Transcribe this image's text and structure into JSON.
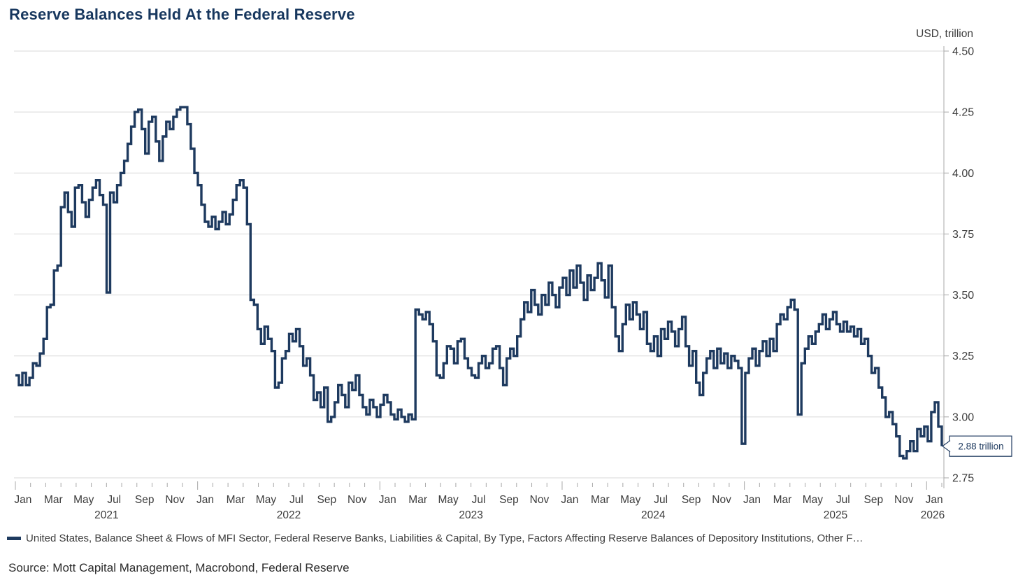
{
  "title": "Reserve Balances Held At the Federal Reserve",
  "y_axis": {
    "unit_label": "USD, trillion",
    "tick_values": [
      4.5,
      4.25,
      4.0,
      3.75,
      3.5,
      3.25,
      3.0,
      2.75
    ],
    "tick_labels": [
      "4.50",
      "4.25",
      "4.00",
      "3.75",
      "3.50",
      "3.25",
      "3.00",
      "2.75"
    ]
  },
  "x_axis": {
    "month_labels": [
      {
        "label": "Jan",
        "m": 0
      },
      {
        "label": "Mar",
        "m": 2
      },
      {
        "label": "May",
        "m": 4
      },
      {
        "label": "Jul",
        "m": 6
      },
      {
        "label": "Sep",
        "m": 8
      },
      {
        "label": "Nov",
        "m": 10
      },
      {
        "label": "Jan",
        "m": 12
      },
      {
        "label": "Mar",
        "m": 14
      },
      {
        "label": "May",
        "m": 16
      },
      {
        "label": "Jul",
        "m": 18
      },
      {
        "label": "Sep",
        "m": 20
      },
      {
        "label": "Nov",
        "m": 22
      },
      {
        "label": "Jan",
        "m": 24
      },
      {
        "label": "Mar",
        "m": 26
      },
      {
        "label": "May",
        "m": 28
      },
      {
        "label": "Jul",
        "m": 30
      },
      {
        "label": "Sep",
        "m": 32
      },
      {
        "label": "Nov",
        "m": 34
      },
      {
        "label": "Jan",
        "m": 36
      },
      {
        "label": "Mar",
        "m": 38
      },
      {
        "label": "May",
        "m": 40
      },
      {
        "label": "Jul",
        "m": 42
      },
      {
        "label": "Sep",
        "m": 44
      },
      {
        "label": "Nov",
        "m": 46
      },
      {
        "label": "Jan",
        "m": 48
      },
      {
        "label": "Mar",
        "m": 50
      },
      {
        "label": "May",
        "m": 52
      },
      {
        "label": "Jul",
        "m": 54
      },
      {
        "label": "Sep",
        "m": 56
      },
      {
        "label": "Nov",
        "m": 58
      },
      {
        "label": "Jan",
        "m": 60
      }
    ],
    "year_labels": [
      {
        "label": "2021",
        "center_m": 6
      },
      {
        "label": "2022",
        "center_m": 18
      },
      {
        "label": "2023",
        "center_m": 30
      },
      {
        "label": "2024",
        "center_m": 42
      },
      {
        "label": "2025",
        "center_m": 54
      },
      {
        "label": "2026",
        "center_m": 60.4
      }
    ],
    "total_months": 61
  },
  "callout": {
    "text": "2.88 trillion"
  },
  "legend": {
    "series_label": "United States, Balance Sheet & Flows of MFI Sector, Federal Reserve Banks, Liabilities & Capital, By Type, Factors Affecting Reserve Balances of Depository Institutions, Other F…"
  },
  "source": "Source: Mott Capital Management, Macrobond, Federal Reserve",
  "colors": {
    "line": "#1e3a5f",
    "title": "#17375e",
    "grid": "#d9d9d9",
    "axis": "#a8a8a8",
    "tick_text": "#3d3d3d",
    "callout_border": "#1e3a5f",
    "callout_text": "#1e3a5f"
  },
  "chart_data": {
    "type": "line",
    "render_style": "step-after",
    "title": "Reserve Balances Held At the Federal Reserve",
    "ylabel": "USD, trillion",
    "ylim": [
      2.75,
      4.5
    ],
    "y_tick_step": 0.25,
    "grid": true,
    "frequency": "weekly",
    "start_date": "2021-01-06",
    "x_range": [
      "2021-01",
      "2026-02"
    ],
    "last_value": 2.88,
    "last_value_label": "2.88 trillion",
    "series": [
      {
        "name": "United States, Balance Sheet & Flows of MFI Sector, Federal Reserve Banks, Liabilities & Capital, By Type, Factors Affecting Reserve Balances of Depository Institutions, Other F…",
        "values": [
          3.17,
          3.13,
          3.18,
          3.13,
          3.16,
          3.22,
          3.21,
          3.26,
          3.32,
          3.45,
          3.46,
          3.6,
          3.62,
          3.86,
          3.92,
          3.84,
          3.78,
          3.94,
          3.95,
          3.88,
          3.82,
          3.89,
          3.94,
          3.97,
          3.91,
          3.87,
          3.51,
          3.92,
          3.88,
          3.95,
          4.0,
          4.05,
          4.12,
          4.19,
          4.25,
          4.26,
          4.18,
          4.08,
          4.21,
          4.23,
          4.13,
          4.05,
          4.15,
          4.21,
          4.18,
          4.23,
          4.26,
          4.27,
          4.27,
          4.2,
          4.1,
          4.0,
          3.95,
          3.87,
          3.8,
          3.78,
          3.82,
          3.77,
          3.8,
          3.84,
          3.79,
          3.83,
          3.89,
          3.95,
          3.97,
          3.94,
          3.79,
          3.48,
          3.46,
          3.36,
          3.3,
          3.37,
          3.32,
          3.27,
          3.12,
          3.14,
          3.24,
          3.27,
          3.34,
          3.31,
          3.36,
          3.29,
          3.21,
          3.24,
          3.17,
          3.07,
          3.1,
          3.04,
          3.12,
          2.98,
          3.0,
          3.06,
          3.13,
          3.09,
          3.04,
          3.14,
          3.11,
          3.17,
          3.09,
          3.04,
          3.01,
          3.07,
          3.04,
          3.0,
          3.05,
          3.09,
          3.06,
          3.01,
          2.99,
          3.03,
          3.0,
          2.98,
          3.01,
          2.99,
          3.44,
          3.42,
          3.4,
          3.43,
          3.38,
          3.31,
          3.17,
          3.16,
          3.22,
          3.29,
          3.28,
          3.22,
          3.31,
          3.32,
          3.24,
          3.2,
          3.17,
          3.16,
          3.22,
          3.25,
          3.2,
          3.22,
          3.28,
          3.29,
          3.2,
          3.13,
          3.24,
          3.28,
          3.25,
          3.33,
          3.4,
          3.47,
          3.43,
          3.52,
          3.46,
          3.42,
          3.5,
          3.46,
          3.55,
          3.5,
          3.45,
          3.53,
          3.57,
          3.5,
          3.6,
          3.53,
          3.62,
          3.55,
          3.48,
          3.58,
          3.52,
          3.57,
          3.63,
          3.56,
          3.49,
          3.62,
          3.45,
          3.33,
          3.27,
          3.38,
          3.46,
          3.4,
          3.47,
          3.42,
          3.36,
          3.43,
          3.3,
          3.27,
          3.33,
          3.25,
          3.36,
          3.32,
          3.39,
          3.35,
          3.29,
          3.36,
          3.41,
          3.29,
          3.21,
          3.27,
          3.14,
          3.09,
          3.18,
          3.24,
          3.27,
          3.2,
          3.28,
          3.22,
          3.26,
          3.2,
          3.25,
          3.23,
          3.2,
          2.89,
          3.18,
          3.24,
          3.28,
          3.21,
          3.27,
          3.31,
          3.25,
          3.32,
          3.27,
          3.38,
          3.42,
          3.4,
          3.45,
          3.48,
          3.44,
          3.01,
          3.22,
          3.28,
          3.33,
          3.3,
          3.35,
          3.38,
          3.42,
          3.36,
          3.4,
          3.43,
          3.38,
          3.35,
          3.39,
          3.35,
          3.37,
          3.33,
          3.36,
          3.3,
          3.32,
          3.25,
          3.18,
          3.2,
          3.12,
          3.08,
          3.0,
          3.02,
          2.97,
          2.92,
          2.84,
          2.83,
          2.86,
          2.9,
          2.86,
          2.95,
          2.92,
          2.96,
          2.9,
          3.02,
          3.06,
          2.96,
          2.88
        ]
      }
    ]
  }
}
